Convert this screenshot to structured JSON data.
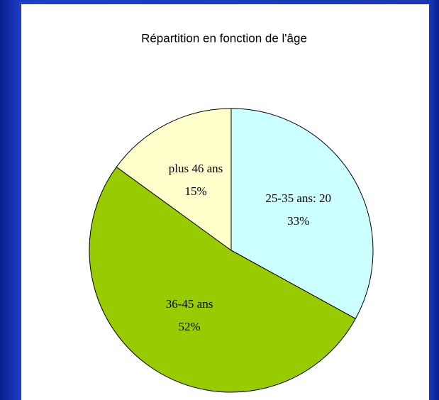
{
  "chart_data": {
    "type": "pie",
    "title": "Répartition en fonction de l'âge",
    "categories": [
      "25-35 ans: 20",
      "36-45 ans",
      "plus 46 ans"
    ],
    "values": [
      33,
      52,
      15
    ],
    "value_labels": [
      "33%",
      "52%",
      "15%"
    ],
    "colors": [
      "#ccffff",
      "#99cc00",
      "#ffffcc"
    ]
  }
}
